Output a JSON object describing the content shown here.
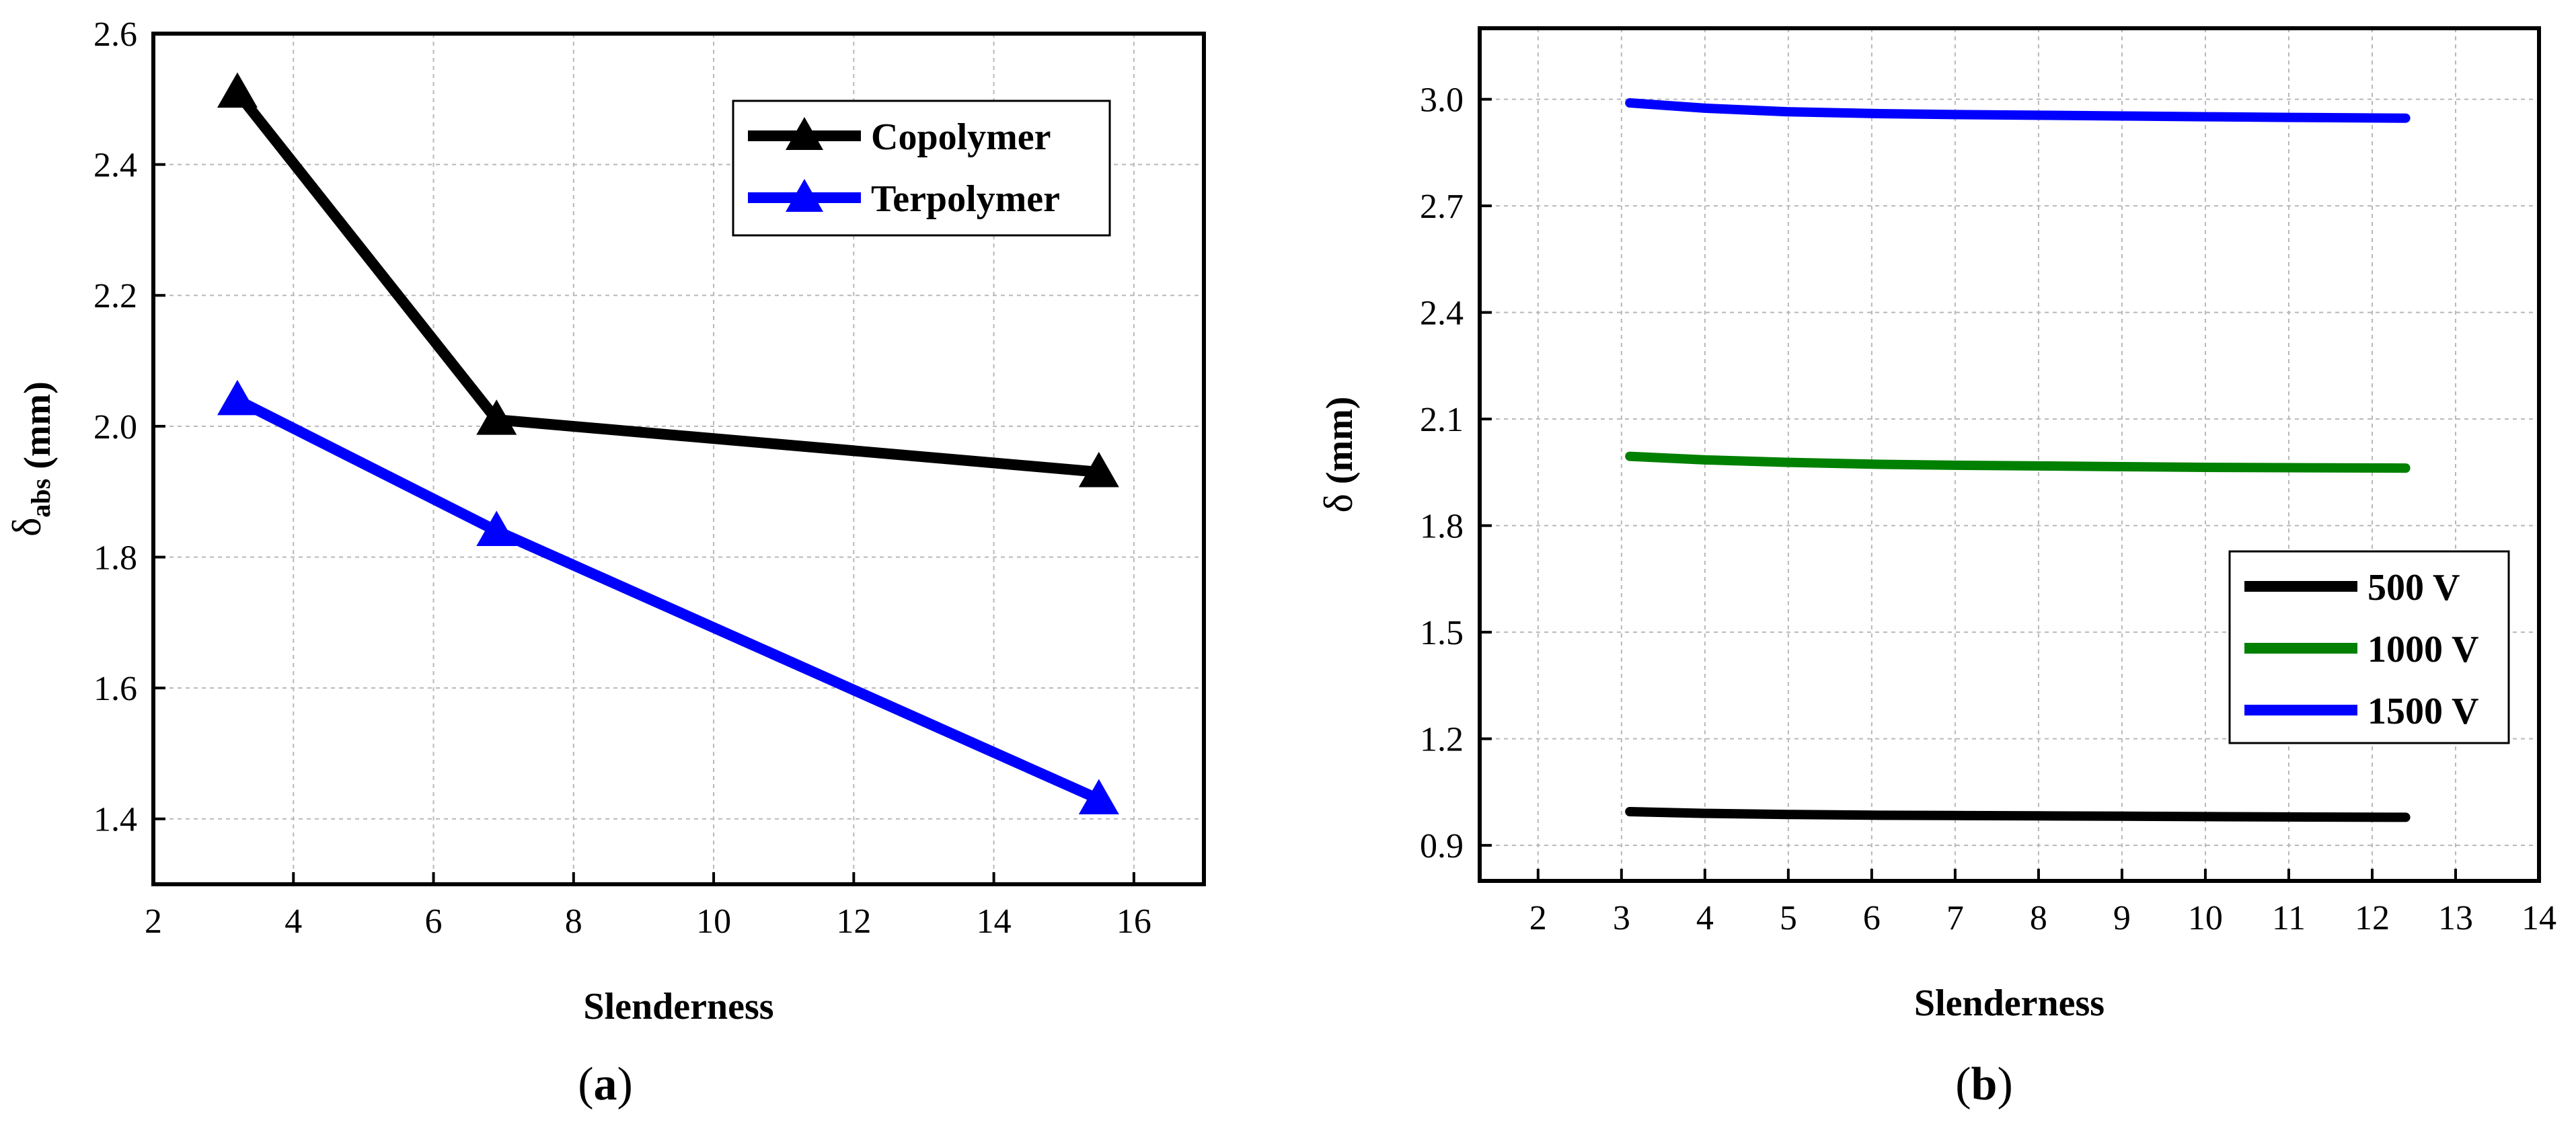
{
  "chart_data": [
    {
      "type": "line",
      "panel": "a",
      "caption": "(a)",
      "caption_letter": "a",
      "title": "",
      "xlabel": "Slenderness",
      "ylabel_main": "δ",
      "ylabel_sub": "abs",
      "ylabel_unit": " (mm)",
      "xlim": [
        2,
        17
      ],
      "ylim": [
        1.3,
        2.6
      ],
      "xticks": [
        2,
        4,
        6,
        8,
        10,
        12,
        14,
        16
      ],
      "yticks": [
        1.4,
        1.6,
        1.8,
        2.0,
        2.2,
        2.4,
        2.6
      ],
      "ytick_decimals": 1,
      "grid": true,
      "legend_position": "top-right",
      "series": [
        {
          "name": "Copolymer",
          "color": "#000000",
          "marker": "triangle",
          "x": [
            3.2,
            6.9,
            15.5
          ],
          "y": [
            2.51,
            2.01,
            1.93
          ]
        },
        {
          "name": "Terpolymer",
          "color": "#0000ff",
          "marker": "triangle",
          "x": [
            3.2,
            6.9,
            15.5
          ],
          "y": [
            2.04,
            1.84,
            1.43
          ]
        }
      ]
    },
    {
      "type": "line",
      "panel": "b",
      "caption": "(b)",
      "caption_letter": "b",
      "title": "",
      "xlabel": "Slenderness",
      "ylabel_main": "δ",
      "ylabel_sub": "",
      "ylabel_unit": " (mm)",
      "xlim": [
        1.3,
        14
      ],
      "ylim": [
        0.8,
        3.2
      ],
      "xticks": [
        2,
        3,
        4,
        5,
        6,
        7,
        8,
        9,
        10,
        11,
        12,
        13,
        14
      ],
      "yticks": [
        0.9,
        1.2,
        1.5,
        1.8,
        2.1,
        2.4,
        2.7,
        3.0
      ],
      "ytick_decimals": 1,
      "grid": true,
      "legend_position": "bottom-right",
      "series": [
        {
          "name": "500 V",
          "color": "#000000",
          "marker": "none",
          "x": [
            3.1,
            4,
            5,
            6,
            7,
            8,
            9,
            10,
            11,
            12.4
          ],
          "y": [
            0.995,
            0.99,
            0.987,
            0.985,
            0.984,
            0.983,
            0.982,
            0.981,
            0.98,
            0.979
          ]
        },
        {
          "name": "1000 V",
          "color": "#008000",
          "marker": "none",
          "x": [
            3.1,
            4,
            5,
            6,
            7,
            8,
            9,
            10,
            11,
            12.4
          ],
          "y": [
            1.995,
            1.985,
            1.978,
            1.973,
            1.97,
            1.968,
            1.966,
            1.964,
            1.963,
            1.962
          ]
        },
        {
          "name": "1500 V",
          "color": "#0000ff",
          "marker": "none",
          "x": [
            3.1,
            4,
            5,
            6,
            7,
            8,
            9,
            10,
            11,
            12.4
          ],
          "y": [
            2.99,
            2.975,
            2.965,
            2.96,
            2.957,
            2.955,
            2.953,
            2.951,
            2.949,
            2.947
          ]
        }
      ]
    }
  ]
}
